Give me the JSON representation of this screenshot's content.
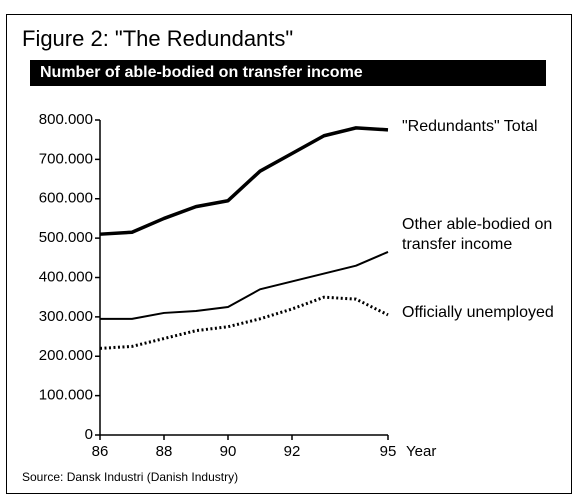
{
  "chart_data": {
    "type": "line",
    "title": "Figure 2: \"The Redundants\"",
    "subtitle": "Number of able-bodied on transfer income",
    "x_label": "Year",
    "source": "Source: Dansk Industri (Danish Industry)",
    "x": [
      86,
      87,
      88,
      89,
      90,
      91,
      92,
      93,
      94,
      95
    ],
    "xlim": [
      86,
      95
    ],
    "xticks": [
      86,
      88,
      90,
      92,
      95
    ],
    "ylim": [
      0,
      800000
    ],
    "yticks": [
      0,
      {
        "value": 100000,
        "label": "100.000"
      },
      {
        "value": 200000,
        "label": "200.000"
      },
      {
        "value": 300000,
        "label": "300.000"
      },
      {
        "value": 400000,
        "label": "400.000"
      },
      {
        "value": 500000,
        "label": "500.000"
      },
      {
        "value": 600000,
        "label": "600.000"
      },
      {
        "value": 700000,
        "label": "700.000"
      },
      {
        "value": 800000,
        "label": "800.000"
      }
    ],
    "series": [
      {
        "name": "\"Redundants\" Total",
        "color": "#000000",
        "line_style": "solid",
        "width": 3.5,
        "values": [
          510000,
          515000,
          550000,
          580000,
          595000,
          670000,
          715000,
          760000,
          780000,
          775000
        ]
      },
      {
        "name": "Other able-bodied on transfer income",
        "color": "#000000",
        "line_style": "solid",
        "width": 2,
        "values": [
          295000,
          295000,
          310000,
          315000,
          325000,
          370000,
          390000,
          410000,
          430000,
          465000
        ]
      },
      {
        "name": "Officially unemployed",
        "color": "#000000",
        "line_style": "dotted",
        "width": 3,
        "values": [
          220000,
          225000,
          245000,
          265000,
          275000,
          295000,
          320000,
          350000,
          345000,
          305000
        ]
      }
    ]
  }
}
